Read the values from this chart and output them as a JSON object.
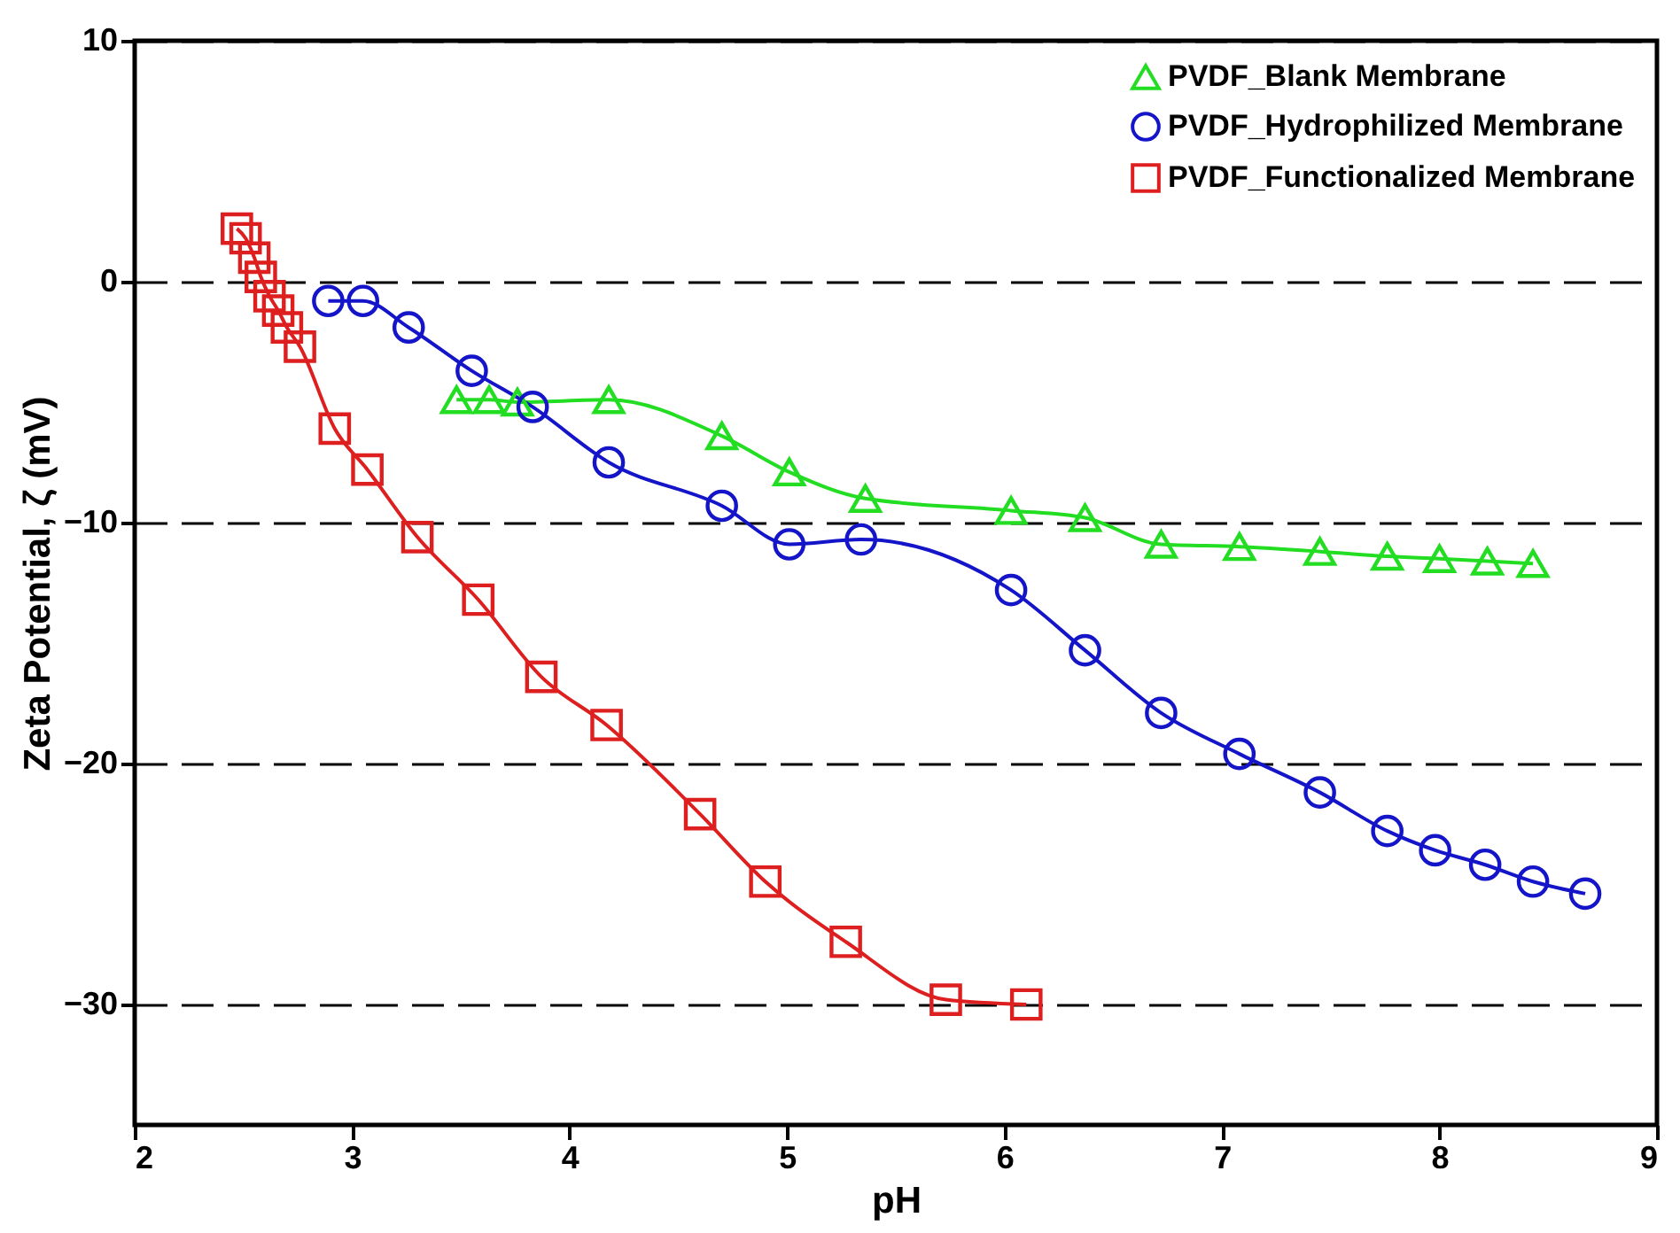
{
  "chart_data": {
    "type": "line",
    "xlabel": "pH",
    "ylabel": "Zeta Potential, ζ (mV)",
    "xlim": [
      2,
      9
    ],
    "xticks": [
      2,
      3,
      4,
      5,
      6,
      7,
      8,
      9
    ],
    "ylim": [
      -35,
      10
    ],
    "yticks": [
      -30,
      -20,
      -10,
      0,
      10
    ],
    "grid": "y",
    "legend": "top right",
    "line_style": "solid",
    "series": [
      {
        "name": "PVDF_Blank Membrane",
        "color": "#22dd22",
        "marker": "triangle",
        "x": [
          3.48,
          3.63,
          3.76,
          4.18,
          4.7,
          5.01,
          5.36,
          6.03,
          6.37,
          6.72,
          7.08,
          7.45,
          7.76,
          8.0,
          8.22,
          8.43
        ],
        "values": [
          -4.9,
          -4.9,
          -5.0,
          -4.9,
          -6.4,
          -7.9,
          -9.0,
          -9.5,
          -9.8,
          -10.9,
          -11.0,
          -11.2,
          -11.4,
          -11.5,
          -11.6,
          -11.7
        ]
      },
      {
        "name": "PVDF_Hydrophilized Membrane",
        "color": "#1414c8",
        "marker": "circle",
        "x": [
          2.89,
          3.05,
          3.26,
          3.55,
          3.83,
          4.18,
          4.7,
          5.01,
          5.34,
          6.03,
          6.37,
          6.72,
          7.08,
          7.45,
          7.76,
          7.98,
          8.21,
          8.43,
          8.67
        ],
        "values": [
          -0.8,
          -0.8,
          -1.9,
          -3.7,
          -5.2,
          -7.5,
          -9.3,
          -10.9,
          -10.7,
          -12.8,
          -15.3,
          -17.9,
          -19.6,
          -21.2,
          -22.8,
          -23.6,
          -24.2,
          -24.9,
          -25.4
        ]
      },
      {
        "name": "PVDF_Functionalized Membrane",
        "color": "#dd1f1f",
        "marker": "square",
        "x": [
          2.47,
          2.51,
          2.55,
          2.58,
          2.62,
          2.66,
          2.7,
          2.76,
          2.92,
          3.07,
          3.3,
          3.58,
          3.87,
          4.17,
          4.6,
          4.9,
          5.27,
          5.73,
          6.1
        ],
        "values": [
          2.2,
          1.8,
          1.0,
          0.2,
          -0.6,
          -1.2,
          -1.9,
          -2.7,
          -6.1,
          -7.8,
          -10.6,
          -13.2,
          -16.4,
          -18.4,
          -22.1,
          -24.9,
          -27.4,
          -29.8,
          -30.0
        ]
      }
    ]
  }
}
